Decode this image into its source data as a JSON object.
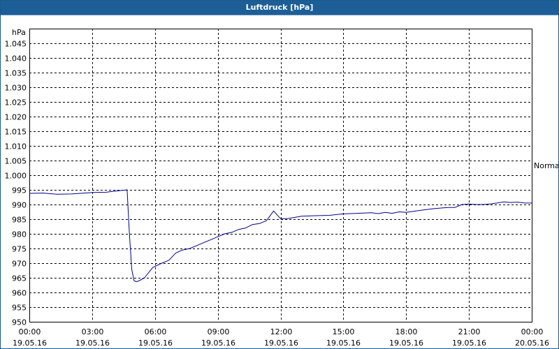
{
  "window": {
    "title": "Luftdruck [hPa]"
  },
  "chart_data": {
    "type": "line",
    "title": "Luftdruck [hPa]",
    "ylabel": "hPa",
    "ylim": [
      950,
      1050
    ],
    "y_ticks": [
      "950",
      "955",
      "960",
      "965",
      "970",
      "975",
      "980",
      "985",
      "990",
      "995",
      "1.000",
      "1.005",
      "1.010",
      "1.015",
      "1.020",
      "1.025",
      "1.030",
      "1.035",
      "1.040",
      "1.045"
    ],
    "xlim_hours": [
      0,
      24
    ],
    "x_ticks": [
      {
        "time": "00:00",
        "date": "19.05.16"
      },
      {
        "time": "03:00",
        "date": "19.05.16"
      },
      {
        "time": "06:00",
        "date": "19.05.16"
      },
      {
        "time": "09:00",
        "date": "19.05.16"
      },
      {
        "time": "12:00",
        "date": "19.05.16"
      },
      {
        "time": "15:00",
        "date": "19.05.16"
      },
      {
        "time": "18:00",
        "date": "19.05.16"
      },
      {
        "time": "21:00",
        "date": "19.05.16"
      },
      {
        "time": "00:00",
        "date": "20.05.16"
      }
    ],
    "reference_label": "Normal",
    "reference_value": 1003.3,
    "grid": true,
    "series": [
      {
        "color": "#00008b",
        "x": [
          0,
          0.67,
          1.0,
          1.33,
          2.0,
          3.0,
          3.67,
          4.0,
          4.67,
          4.78,
          4.89,
          5.0,
          5.11,
          5.22,
          5.5,
          5.89,
          6.33,
          6.67,
          7.0,
          7.33,
          7.67,
          8.0,
          8.33,
          8.67,
          9.0,
          9.33,
          9.67,
          10.0,
          10.33,
          10.67,
          11.0,
          11.33,
          11.67,
          11.83,
          12.0,
          12.33,
          13.0,
          13.67,
          14.33,
          15.0,
          15.67,
          16.33,
          16.67,
          17.0,
          17.33,
          17.67,
          18.0,
          18.67,
          19.33,
          20.0,
          20.33,
          20.67,
          21.0,
          21.33,
          21.67,
          22.0,
          22.33,
          22.67,
          23.0,
          23.33,
          23.67,
          24.0
        ],
        "y": [
          993.8,
          993.9,
          993.7,
          993.5,
          993.6,
          994.1,
          994.2,
          994.5,
          995.0,
          980.0,
          968.0,
          964.0,
          963.7,
          963.9,
          965.0,
          968.5,
          970.0,
          971.0,
          973.5,
          974.5,
          975.0,
          976.0,
          977.0,
          978.0,
          979.0,
          980.0,
          980.5,
          981.5,
          982.0,
          983.2,
          983.5,
          984.5,
          987.8,
          986.5,
          985.2,
          985.2,
          986.0,
          986.2,
          986.3,
          986.8,
          987.0,
          987.2,
          986.9,
          987.3,
          987.0,
          987.5,
          987.3,
          988.0,
          988.6,
          989.0,
          989.0,
          990.0,
          990.2,
          990.0,
          990.0,
          990.2,
          990.5,
          990.9,
          990.7,
          990.8,
          990.5,
          990.5
        ]
      }
    ]
  }
}
